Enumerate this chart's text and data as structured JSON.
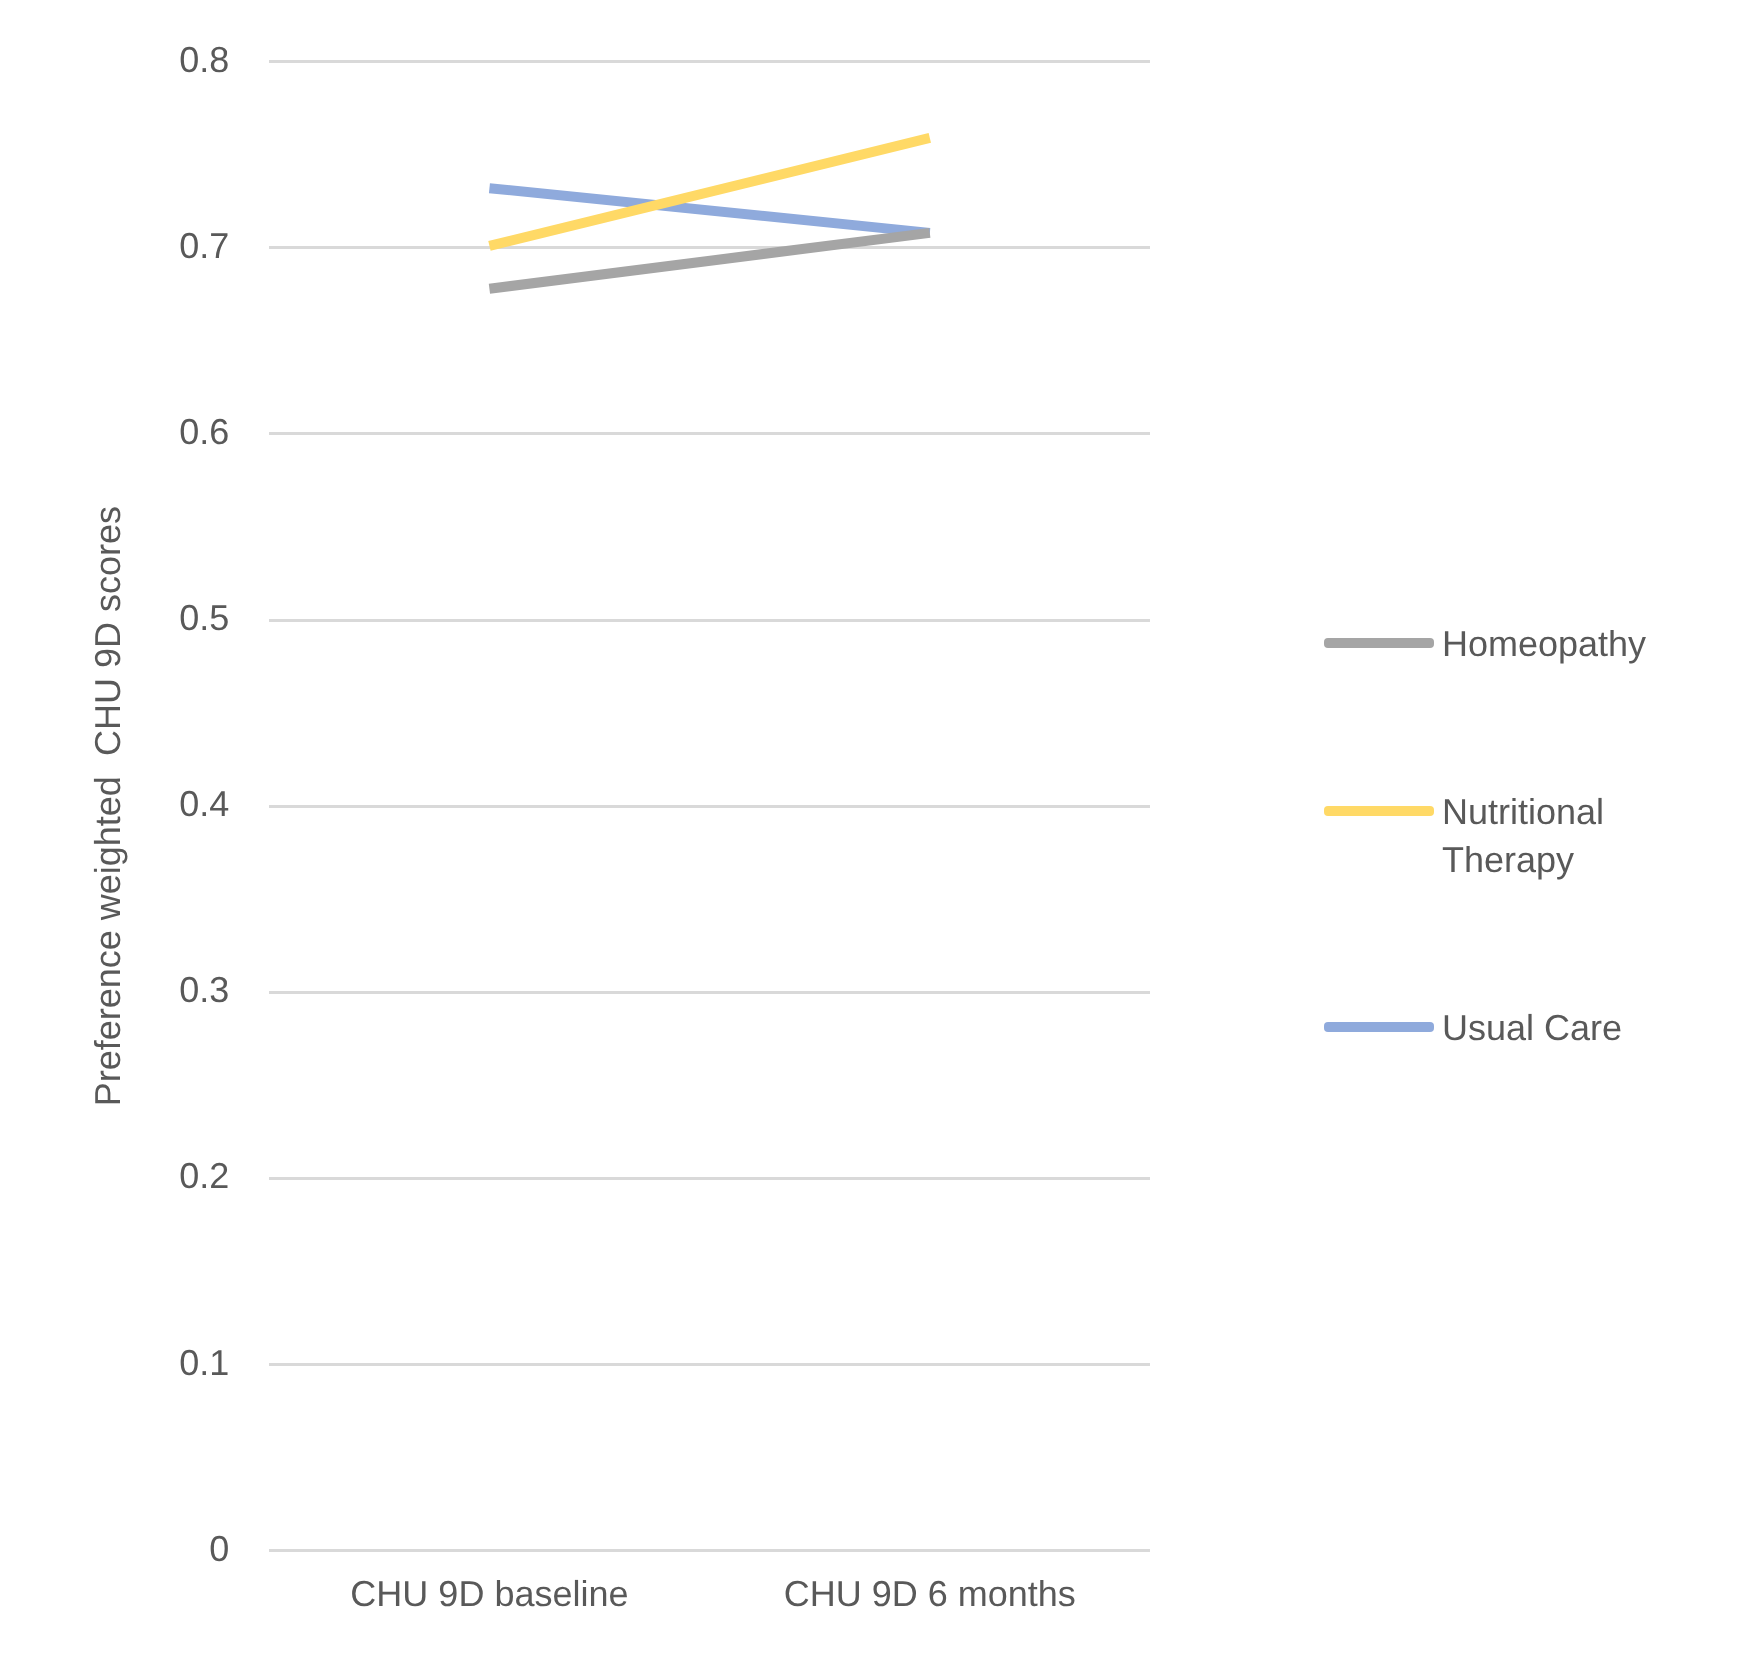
{
  "chart_data": {
    "type": "line",
    "ylabel": "Preference weighted  CHU 9D scores",
    "categories": [
      "CHU 9D baseline",
      "CHU 9D 6 months"
    ],
    "series": [
      {
        "name": "Homeopathy",
        "color": "#a5a5a5",
        "values": [
          0.678,
          0.708
        ]
      },
      {
        "name": "Nutritional Therapy",
        "color": "#ffd966",
        "values": [
          0.701,
          0.759
        ]
      },
      {
        "name": "Usual Care",
        "color": "#8faadc",
        "values": [
          0.732,
          0.708
        ]
      }
    ],
    "ylim": [
      0,
      0.8
    ],
    "yticks": [
      0,
      0.1,
      0.2,
      0.3,
      0.4,
      0.5,
      0.6,
      0.7,
      0.8
    ],
    "grid": "y",
    "legend": "right",
    "marker": "none",
    "line_style": "solid"
  }
}
